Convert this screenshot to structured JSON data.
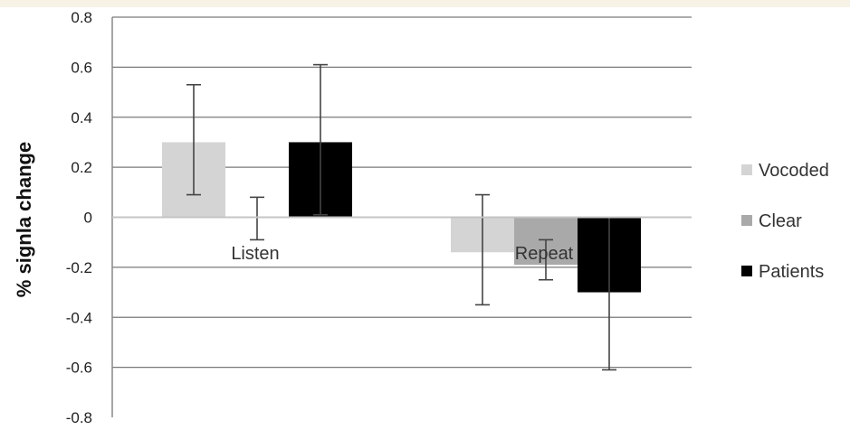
{
  "chart_data": {
    "type": "bar",
    "title": "",
    "xlabel": "",
    "ylabel": "% signla change",
    "ylim": [
      -0.8,
      0.8
    ],
    "yticks": [
      0.8,
      0.6,
      0.4,
      0.2,
      0,
      -0.2,
      -0.4,
      -0.6,
      -0.8
    ],
    "categories": [
      "Listen",
      "Repeat"
    ],
    "grid": true,
    "legend_position": "right",
    "series": [
      {
        "name": "Vocoded",
        "color": "#d4d4d4",
        "values": [
          0.3,
          -0.14
        ],
        "error_low": [
          0.09,
          -0.35
        ],
        "error_high": [
          0.53,
          0.09
        ]
      },
      {
        "name": "Clear",
        "color": "#a9a9a9",
        "values": [
          0.0,
          -0.19
        ],
        "error_low": [
          -0.09,
          -0.25
        ],
        "error_high": [
          0.08,
          -0.09
        ]
      },
      {
        "name": "Patients",
        "color": "#000000",
        "values": [
          0.3,
          -0.3
        ],
        "error_low": [
          0.01,
          -0.61
        ],
        "error_high": [
          0.61,
          0.0
        ]
      }
    ]
  }
}
